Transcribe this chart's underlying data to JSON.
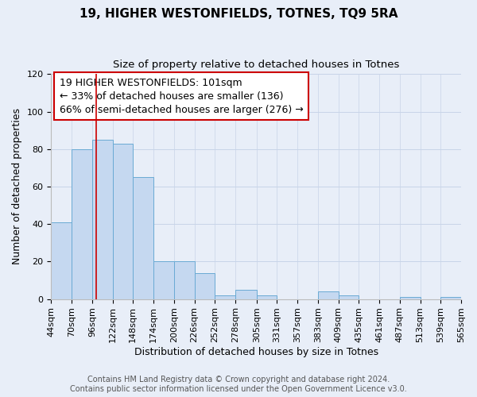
{
  "title": "19, HIGHER WESTONFIELDS, TOTNES, TQ9 5RA",
  "subtitle": "Size of property relative to detached houses in Totnes",
  "xlabel": "Distribution of detached houses by size in Totnes",
  "ylabel": "Number of detached properties",
  "bin_edges": [
    44,
    70,
    96,
    122,
    148,
    174,
    200,
    226,
    252,
    278,
    305,
    331,
    357,
    383,
    409,
    435,
    461,
    487,
    513,
    539,
    565
  ],
  "bar_heights": [
    41,
    80,
    85,
    83,
    65,
    20,
    20,
    14,
    2,
    5,
    2,
    0,
    0,
    4,
    2,
    0,
    0,
    1,
    0,
    1
  ],
  "bar_color": "#c5d8f0",
  "bar_edge_color": "#6aaad4",
  "vline_x": 101,
  "vline_color": "#cc0000",
  "ylim": [
    0,
    120
  ],
  "yticks": [
    0,
    20,
    40,
    60,
    80,
    100,
    120
  ],
  "annotation_line1": "19 HIGHER WESTONFIELDS: 101sqm",
  "annotation_line2": "← 33% of detached houses are smaller (136)",
  "annotation_line3": "66% of semi-detached houses are larger (276) →",
  "footer_line1": "Contains HM Land Registry data © Crown copyright and database right 2024.",
  "footer_line2": "Contains public sector information licensed under the Open Government Licence v3.0.",
  "background_color": "#e8eef8",
  "grid_color": "#c8d4e8",
  "title_fontsize": 11,
  "subtitle_fontsize": 9.5,
  "axis_label_fontsize": 9,
  "tick_label_fontsize": 8,
  "annotation_fontsize": 9,
  "footer_fontsize": 7
}
